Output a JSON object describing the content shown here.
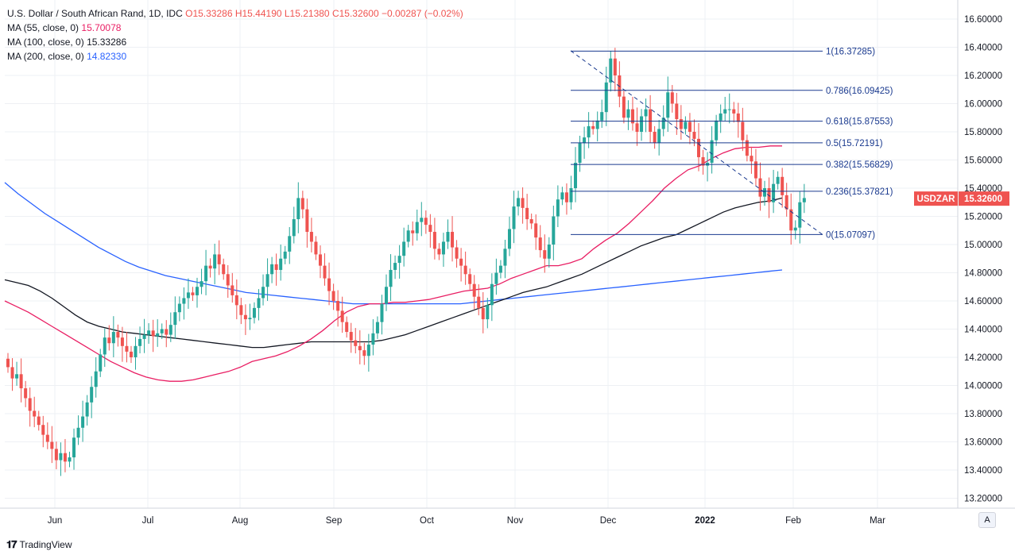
{
  "legend": {
    "symbol": "U.S. Dollar / South African Rand, 1D, IDC",
    "ohlc": "O15.33286 H15.44190 L15.21380 C15.32600 −0.00287 (−0.02%)",
    "ma": [
      {
        "label": "MA (55, close, 0)",
        "value": "15.70078",
        "color": "#e91e63"
      },
      {
        "label": "MA (100, close, 0)",
        "value": "15.33286",
        "color": "#131722"
      },
      {
        "label": "MA (200, close, 0)",
        "value": "14.82330",
        "color": "#2962ff"
      }
    ]
  },
  "price_tag": {
    "symbol": "USDZAR",
    "value": "15.32600",
    "color": "#ef5350"
  },
  "auto_label": "A",
  "branding": "TradingView",
  "colors": {
    "up": "#26a69a",
    "down": "#ef5350",
    "grid": "#eef0f4",
    "fib": "#1a3a8f"
  },
  "chart_data": {
    "type": "candlestick",
    "ylim": [
      13.1,
      16.75
    ],
    "y_ticks": [
      "16.60000",
      "16.40000",
      "16.20000",
      "16.00000",
      "15.80000",
      "15.60000",
      "15.40000",
      "15.20000",
      "15.00000",
      "14.80000",
      "14.60000",
      "14.40000",
      "14.20000",
      "14.00000",
      "13.80000",
      "13.60000",
      "13.40000",
      "13.20000"
    ],
    "x_ticks": [
      "Jun",
      "Jul",
      "Aug",
      "Sep",
      "Oct",
      "Nov",
      "Dec",
      "2022",
      "Feb",
      "Mar"
    ],
    "closes": [
      14.13,
      14.05,
      14.08,
      13.98,
      13.91,
      13.82,
      13.78,
      13.72,
      13.65,
      13.6,
      13.55,
      13.47,
      13.52,
      13.46,
      13.49,
      13.63,
      13.7,
      13.78,
      13.88,
      13.99,
      14.1,
      14.22,
      14.34,
      14.3,
      14.38,
      14.34,
      14.28,
      14.24,
      14.2,
      14.28,
      14.33,
      14.36,
      14.39,
      14.35,
      14.37,
      14.4,
      14.36,
      14.43,
      14.52,
      14.58,
      14.62,
      14.66,
      14.64,
      14.7,
      14.74,
      14.85,
      14.83,
      14.93,
      14.86,
      14.79,
      14.71,
      14.64,
      14.57,
      14.5,
      14.47,
      14.48,
      14.55,
      14.62,
      14.7,
      14.79,
      14.86,
      14.82,
      14.9,
      14.95,
      15.06,
      15.18,
      15.33,
      15.25,
      15.09,
      15.02,
      14.93,
      14.85,
      14.76,
      14.67,
      14.6,
      14.53,
      14.45,
      14.38,
      14.32,
      14.28,
      14.25,
      14.21,
      14.29,
      14.37,
      14.45,
      14.58,
      14.7,
      14.82,
      14.87,
      14.92,
      15.02,
      15.1,
      15.08,
      15.16,
      15.19,
      15.14,
      15.09,
      14.97,
      14.93,
      15.02,
      15.09,
      14.98,
      14.9,
      14.85,
      14.79,
      14.72,
      14.63,
      14.55,
      14.47,
      14.57,
      14.72,
      14.8,
      14.85,
      14.97,
      15.11,
      15.27,
      15.33,
      15.26,
      15.18,
      15.15,
      15.05,
      14.96,
      14.9,
      15.0,
      15.2,
      15.32,
      15.37,
      15.3,
      15.4,
      15.58,
      15.72,
      15.76,
      15.84,
      15.82,
      15.88,
      15.94,
      16.15,
      16.32,
      16.2,
      16.05,
      15.9,
      15.96,
      15.86,
      15.8,
      15.91,
      15.96,
      15.8,
      15.72,
      15.82,
      15.9,
      16.08,
      16.0,
      15.89,
      15.82,
      15.87,
      15.8,
      15.75,
      15.62,
      15.56,
      15.58,
      15.74,
      15.88,
      15.93,
      15.96,
      15.96,
      15.93,
      15.87,
      15.74,
      15.63,
      15.59,
      15.47,
      15.34,
      15.4,
      15.3,
      15.43,
      15.48,
      15.35,
      15.25,
      15.1,
      15.12,
      15.3,
      15.33
    ],
    "fib_levels": [
      {
        "label": "1(16.37285)",
        "value": 16.37285
      },
      {
        "label": "0.786(16.09425)",
        "value": 16.09425
      },
      {
        "label": "0.618(15.87553)",
        "value": 15.87553
      },
      {
        "label": "0.5(15.72191)",
        "value": 15.72191
      },
      {
        "label": "0.382(15.56829)",
        "value": 15.56829
      },
      {
        "label": "0.236(15.37821)",
        "value": 15.37821
      },
      {
        "label": "0(15.07097)",
        "value": 15.07097
      }
    ],
    "ma55": {
      "color": "#e91e63",
      "values": [
        14.6,
        14.56,
        14.52,
        14.47,
        14.42,
        14.37,
        14.32,
        14.27,
        14.22,
        14.17,
        14.13,
        14.09,
        14.06,
        14.04,
        14.03,
        14.03,
        14.04,
        14.06,
        14.08,
        14.1,
        14.13,
        14.17,
        14.19,
        14.21,
        14.24,
        14.28,
        14.33,
        14.39,
        14.46,
        14.52,
        14.56,
        14.58,
        14.58,
        14.59,
        14.59,
        14.6,
        14.61,
        14.63,
        14.65,
        14.67,
        14.68,
        14.69,
        14.72,
        14.76,
        14.79,
        14.82,
        14.85,
        14.85,
        14.87,
        14.9,
        14.97,
        15.03,
        15.08,
        15.15,
        15.23,
        15.31,
        15.4,
        15.47,
        15.53,
        15.56,
        15.61,
        15.65,
        15.68,
        15.69,
        15.69,
        15.7,
        15.7
      ]
    },
    "ma100": {
      "color": "#131722",
      "values": [
        14.75,
        14.73,
        14.71,
        14.67,
        14.62,
        14.56,
        14.5,
        14.45,
        14.42,
        14.4,
        14.38,
        14.37,
        14.36,
        14.35,
        14.34,
        14.33,
        14.32,
        14.31,
        14.3,
        14.29,
        14.28,
        14.27,
        14.27,
        14.28,
        14.29,
        14.3,
        14.31,
        14.31,
        14.31,
        14.31,
        14.31,
        14.31,
        14.32,
        14.34,
        14.36,
        14.39,
        14.42,
        14.45,
        14.48,
        14.51,
        14.54,
        14.57,
        14.6,
        14.63,
        14.66,
        14.68,
        14.7,
        14.73,
        14.76,
        14.79,
        14.83,
        14.87,
        14.91,
        14.95,
        14.99,
        15.02,
        15.05,
        15.07,
        15.11,
        15.15,
        15.19,
        15.23,
        15.26,
        15.28,
        15.3,
        15.31,
        15.33
      ]
    },
    "ma200": {
      "color": "#2962ff",
      "values": [
        15.44,
        15.36,
        15.29,
        15.22,
        15.16,
        15.1,
        15.04,
        14.98,
        14.93,
        14.88,
        14.84,
        14.81,
        14.78,
        14.76,
        14.74,
        14.72,
        14.7,
        14.68,
        14.66,
        14.65,
        14.64,
        14.63,
        14.62,
        14.61,
        14.6,
        14.59,
        14.58,
        14.58,
        14.58,
        14.58,
        14.58,
        14.58,
        14.58,
        14.58,
        14.58,
        14.59,
        14.6,
        14.61,
        14.62,
        14.63,
        14.64,
        14.65,
        14.66,
        14.67,
        14.68,
        14.69,
        14.7,
        14.71,
        14.72,
        14.73,
        14.74,
        14.75,
        14.76,
        14.77,
        14.78,
        14.79,
        14.8,
        14.81,
        14.82
      ]
    }
  }
}
